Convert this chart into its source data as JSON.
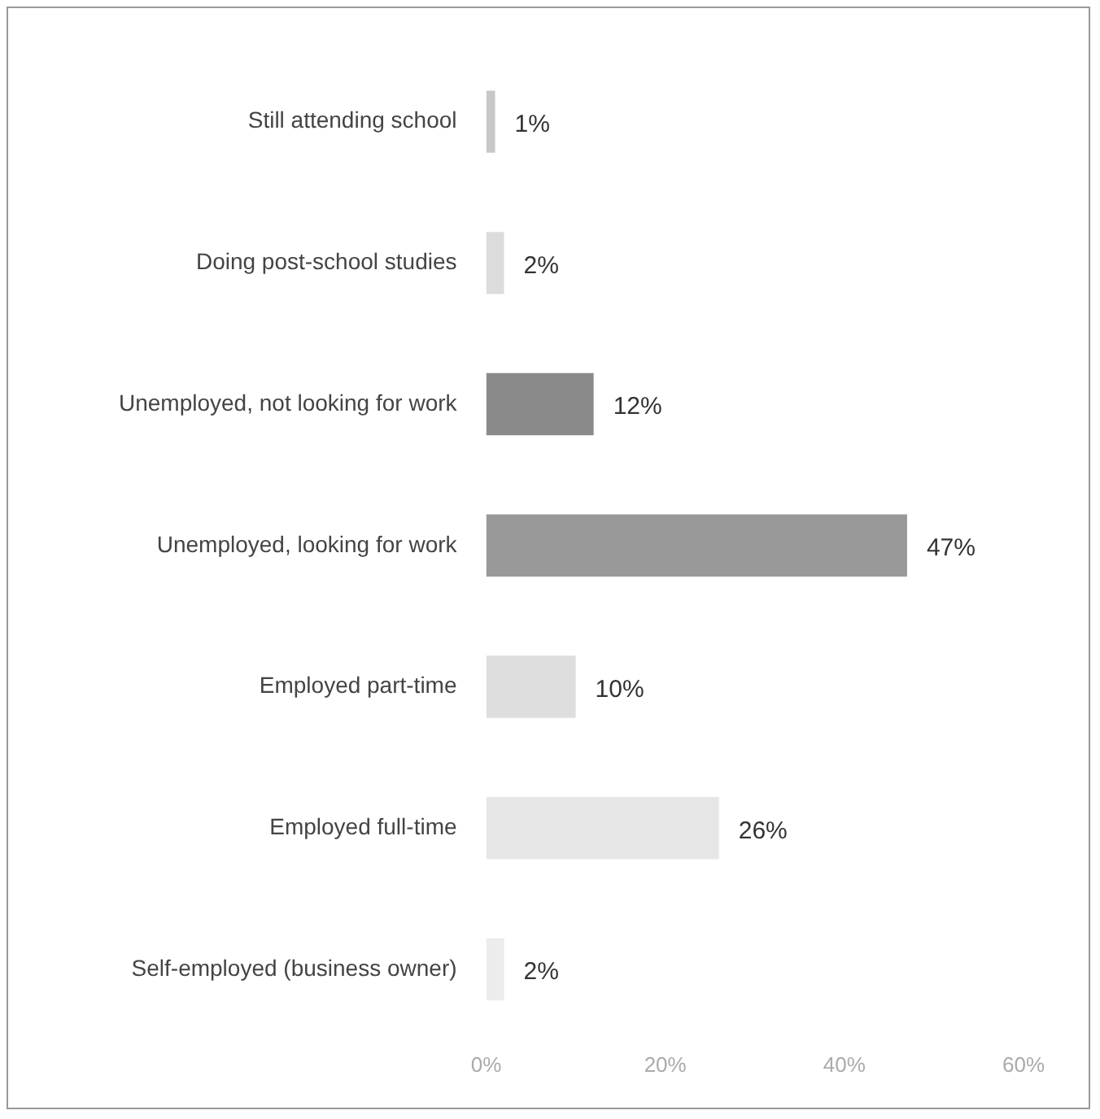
{
  "chart_data": {
    "type": "bar",
    "orientation": "horizontal",
    "categories": [
      "Still attending school",
      "Doing post-school studies",
      "Unemployed, not looking for work",
      "Unemployed, looking for work",
      "Employed part-time",
      "Employed full-time",
      "Self-employed (business owner)"
    ],
    "values": [
      1,
      2,
      12,
      47,
      10,
      26,
      2
    ],
    "colors": [
      "#c8c8c8",
      "#dcdcdc",
      "#8a8a8a",
      "#999999",
      "#dedede",
      "#e6e6e6",
      "#ececec"
    ],
    "value_labels": [
      "1%",
      "2%",
      "12%",
      "47%",
      "10%",
      "26%",
      "2%"
    ],
    "xlim": [
      0,
      60
    ],
    "xticks": [
      {
        "value": 0,
        "label": "0%"
      },
      {
        "value": 20,
        "label": "20%"
      },
      {
        "value": 40,
        "label": "40%"
      },
      {
        "value": 60,
        "label": "60%"
      }
    ],
    "grid": false,
    "legend": false
  }
}
